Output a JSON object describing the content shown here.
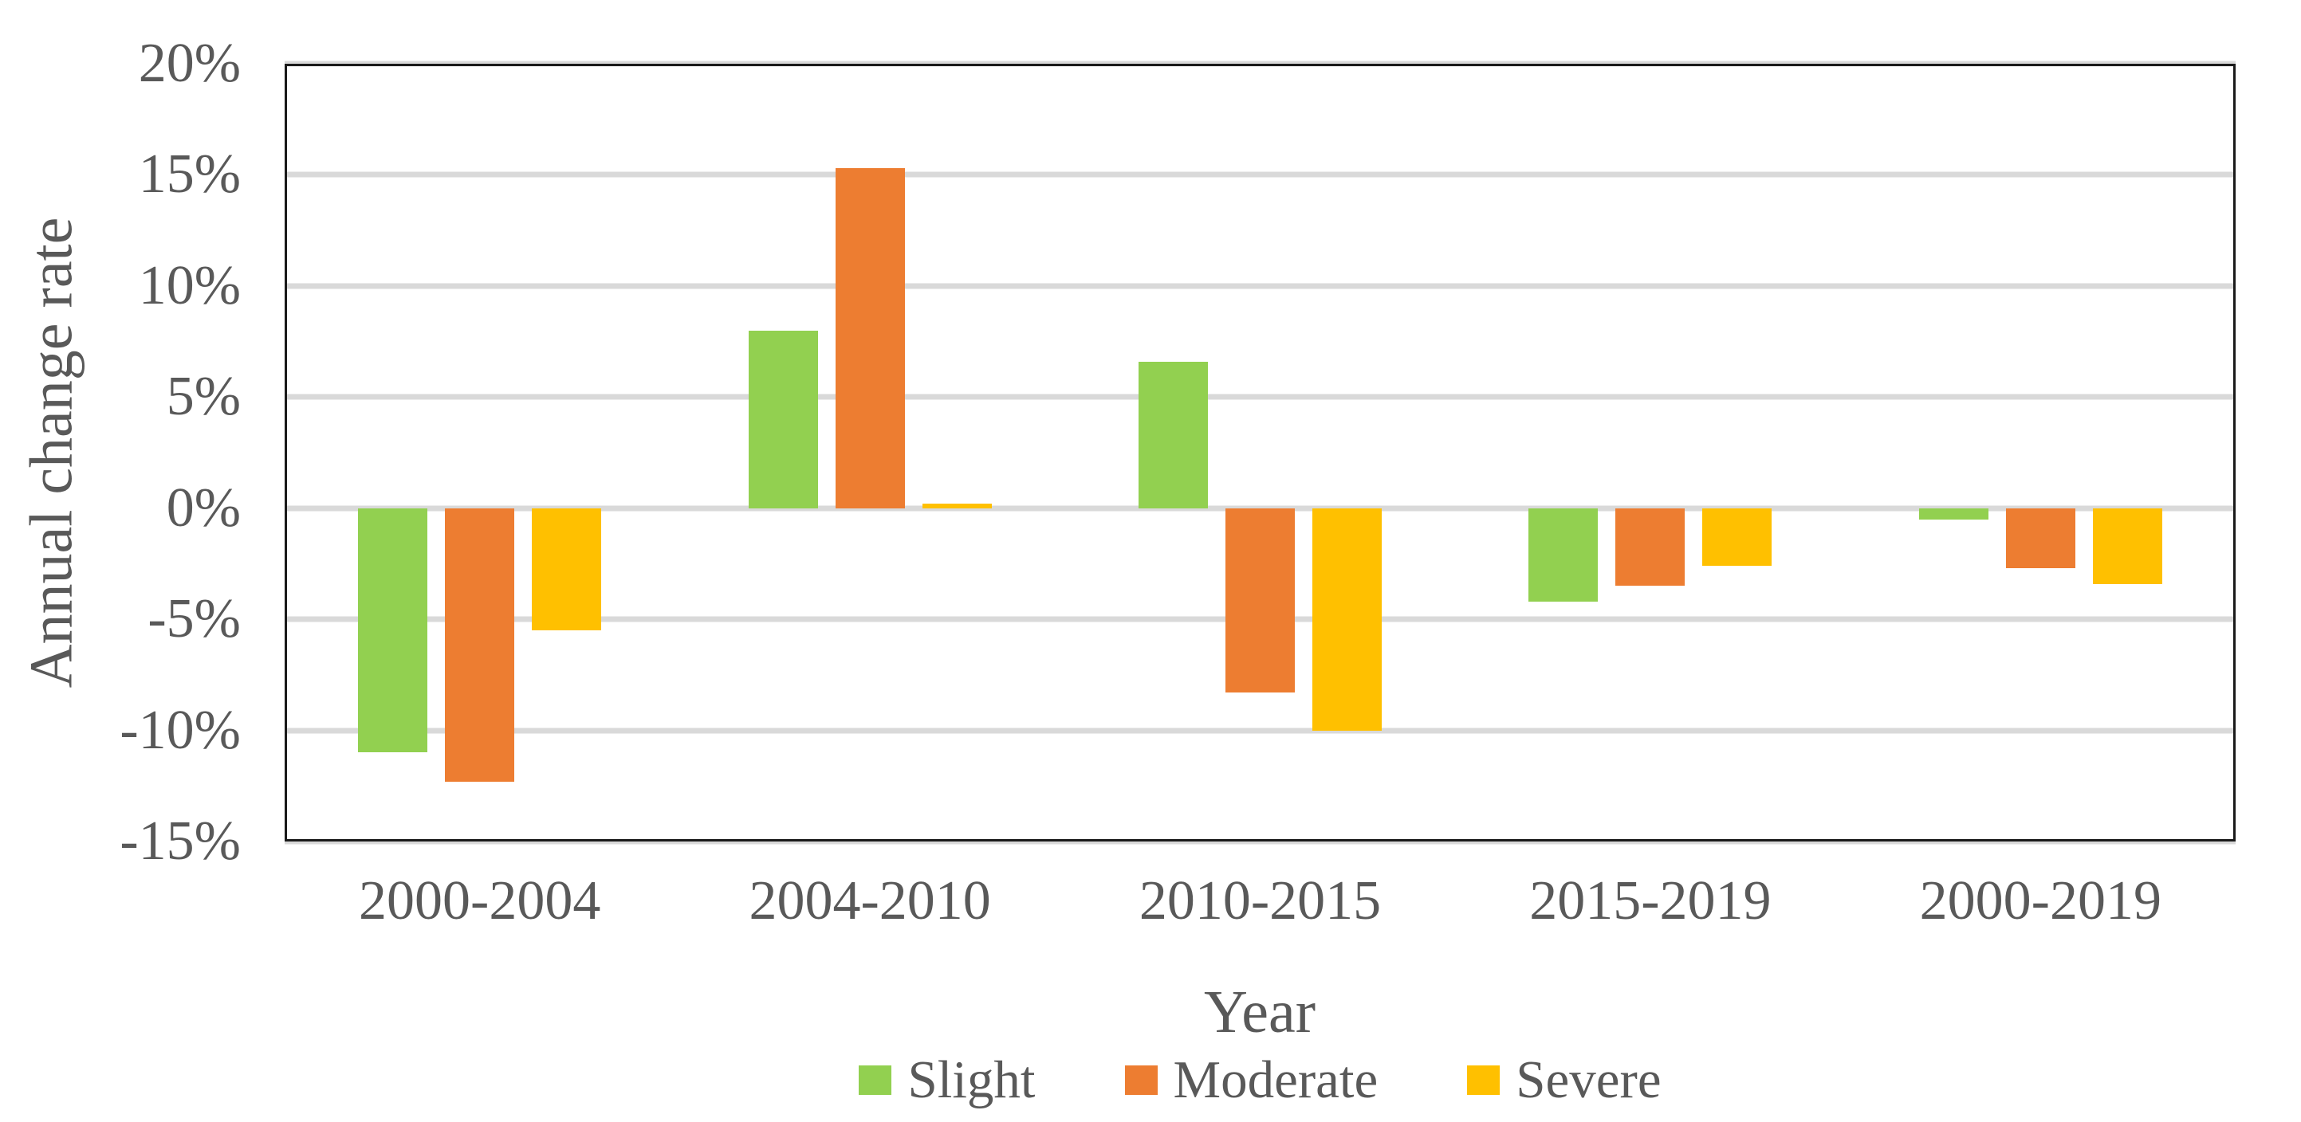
{
  "axes": {
    "y_title": "Annual change rate",
    "x_title": "Year"
  },
  "chart_data": {
    "type": "bar",
    "title": "",
    "xlabel": "Year",
    "ylabel": "Annual change rate",
    "categories": [
      "2000-2004",
      "2004-2010",
      "2010-2015",
      "2015-2019",
      "2000-2019"
    ],
    "series": [
      {
        "name": "Slight",
        "color": "#92D050",
        "values": [
          -11.0,
          8.0,
          6.6,
          -4.2,
          -0.5
        ]
      },
      {
        "name": "Moderate",
        "color": "#ED7D31",
        "values": [
          -12.3,
          15.3,
          -8.3,
          -3.5,
          -2.7
        ]
      },
      {
        "name": "Severe",
        "color": "#FFC000",
        "values": [
          -5.5,
          0.2,
          -10.0,
          -2.6,
          -3.4
        ]
      }
    ],
    "ylim": [
      -15,
      20
    ],
    "ytick_step": 5,
    "ytick_labels": [
      "20%",
      "15%",
      "10%",
      "5%",
      "0%",
      "-5%",
      "-10%",
      "-15%"
    ],
    "ytick_values": [
      20,
      15,
      10,
      5,
      0,
      -5,
      -10,
      -15
    ],
    "grid": true,
    "legend_position": "bottom",
    "colors": {
      "text": "#595959",
      "gridline": "#d9d9d9",
      "plot_border": "#1a1a1a",
      "background": "#ffffff"
    }
  }
}
